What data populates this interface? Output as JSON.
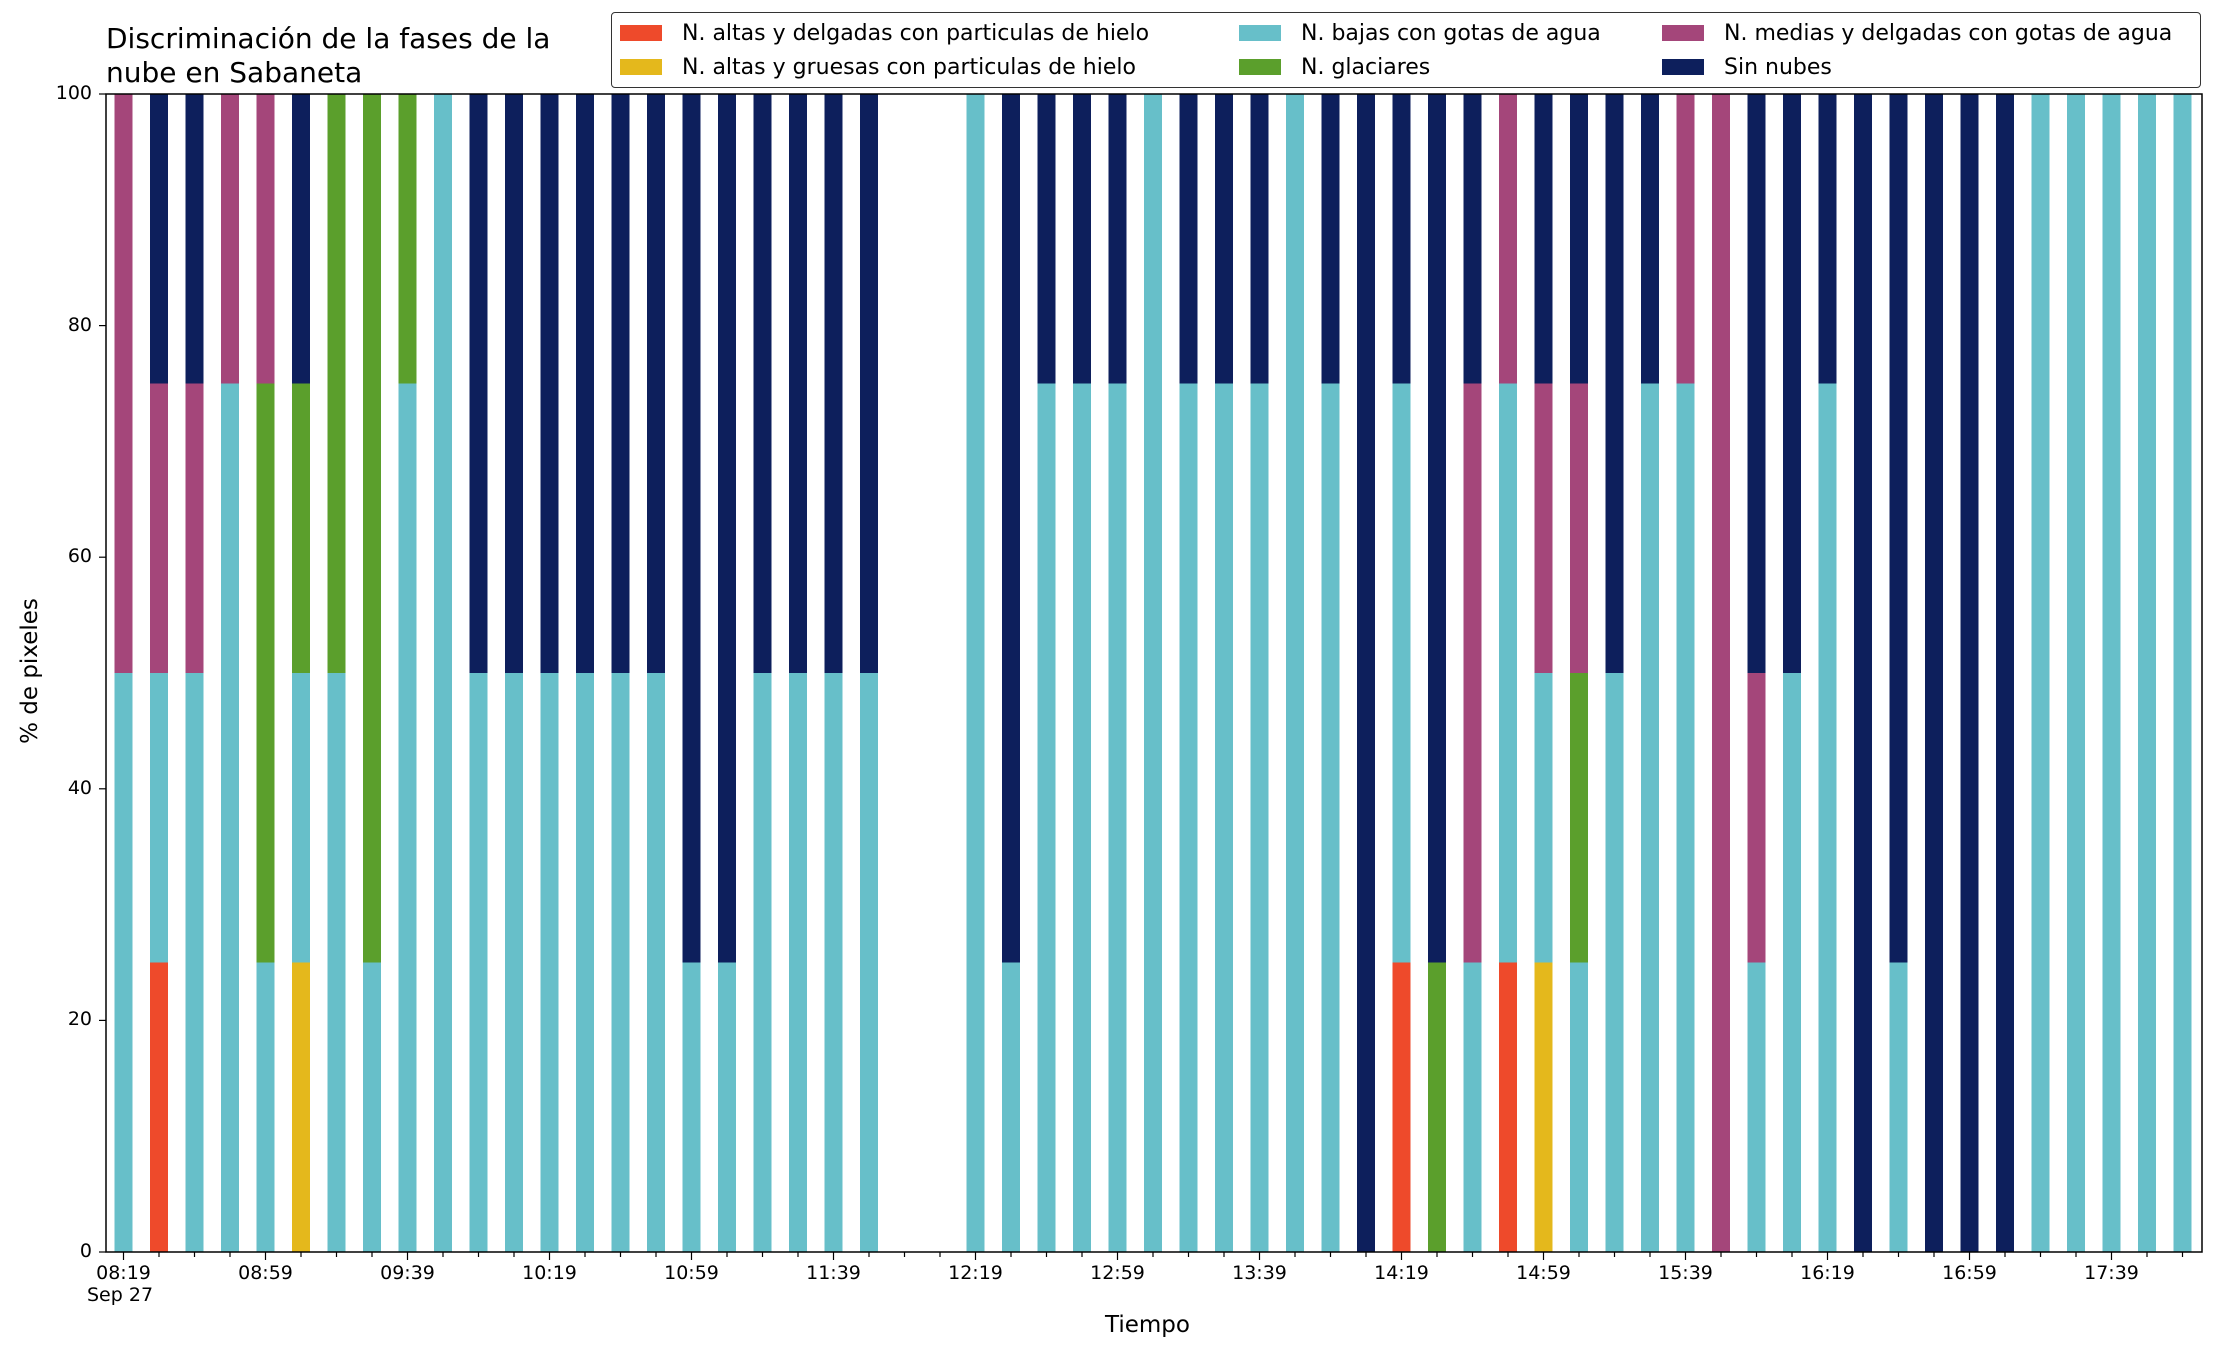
{
  "chart_data": {
    "type": "bar",
    "stacked": true,
    "title": "Discriminación de la fases de la\nnube en Sabaneta",
    "xlabel": "Tiempo",
    "ylabel": "% de pixeles",
    "ylim": [
      0,
      100
    ],
    "yticks": [
      0,
      20,
      40,
      60,
      80,
      100
    ],
    "grid": false,
    "legend_position": "top-right",
    "x_date_label": "Sep 27",
    "xtick_labels": [
      "08:19",
      "08:59",
      "09:39",
      "10:19",
      "10:59",
      "11:39",
      "12:19",
      "12:59",
      "13:39",
      "14:19",
      "14:59",
      "15:39",
      "16:19",
      "16:59",
      "17:39"
    ],
    "categories": [
      "08:19",
      "08:29",
      "08:39",
      "08:49",
      "08:59",
      "09:09",
      "09:19",
      "09:29",
      "09:39",
      "09:49",
      "09:59",
      "10:09",
      "10:19",
      "10:29",
      "10:39",
      "10:49",
      "10:59",
      "11:09",
      "11:19",
      "11:29",
      "11:39",
      "11:49",
      "11:59",
      "12:09",
      "12:19",
      "12:29",
      "12:39",
      "12:49",
      "12:59",
      "13:09",
      "13:19",
      "13:29",
      "13:39",
      "13:49",
      "13:59",
      "14:09",
      "14:19",
      "14:29",
      "14:39",
      "14:49",
      "14:59",
      "15:09",
      "15:19",
      "15:29",
      "15:39",
      "15:49",
      "15:59",
      "16:09",
      "16:19",
      "16:29",
      "16:39",
      "16:49",
      "16:59",
      "17:09",
      "17:19",
      "17:29",
      "17:39",
      "17:49",
      "17:59"
    ],
    "series": [
      {
        "name": "N. altas y delgadas con particulas de hielo",
        "color": "#ee4a2b",
        "values": [
          0,
          25,
          0,
          0,
          0,
          0,
          0,
          0,
          0,
          0,
          0,
          0,
          0,
          0,
          0,
          0,
          0,
          0,
          0,
          0,
          0,
          0,
          null,
          null,
          0,
          0,
          0,
          0,
          0,
          0,
          0,
          0,
          0,
          0,
          0,
          0,
          25,
          0,
          0,
          25,
          0,
          0,
          0,
          0,
          0,
          0,
          0,
          0,
          0,
          0,
          0,
          0,
          0,
          0,
          0,
          0,
          0,
          0,
          0
        ]
      },
      {
        "name": "N. altas y gruesas con particulas de hielo",
        "color": "#e4b81c",
        "values": [
          0,
          0,
          0,
          0,
          0,
          25,
          0,
          0,
          0,
          0,
          0,
          0,
          0,
          0,
          0,
          0,
          0,
          0,
          0,
          0,
          0,
          0,
          null,
          null,
          0,
          0,
          0,
          0,
          0,
          0,
          0,
          0,
          0,
          0,
          0,
          0,
          0,
          0,
          0,
          0,
          25,
          0,
          0,
          0,
          0,
          0,
          0,
          0,
          0,
          0,
          0,
          0,
          0,
          0,
          0,
          0,
          0,
          0,
          0
        ]
      },
      {
        "name": "N. bajas con gotas de agua",
        "color": "#67bfc9",
        "values": [
          50,
          25,
          50,
          75,
          25,
          25,
          50,
          25,
          75,
          100,
          50,
          50,
          50,
          50,
          50,
          50,
          25,
          25,
          50,
          50,
          50,
          50,
          null,
          null,
          100,
          25,
          75,
          75,
          75,
          100,
          75,
          75,
          75,
          100,
          75,
          0,
          50,
          0,
          25,
          50,
          25,
          25,
          50,
          75,
          75,
          0,
          25,
          50,
          75,
          0,
          25,
          0,
          0,
          0,
          100,
          100,
          100,
          100,
          100
        ]
      },
      {
        "name": "N. glaciares",
        "color": "#5b9f2c",
        "values": [
          0,
          0,
          0,
          0,
          50,
          25,
          50,
          75,
          25,
          0,
          0,
          0,
          0,
          0,
          0,
          0,
          0,
          0,
          0,
          0,
          0,
          0,
          null,
          null,
          0,
          0,
          0,
          0,
          0,
          0,
          0,
          0,
          0,
          0,
          0,
          0,
          0,
          25,
          0,
          0,
          0,
          25,
          0,
          0,
          0,
          0,
          0,
          0,
          0,
          0,
          0,
          0,
          0,
          0,
          0,
          0,
          0,
          0,
          0
        ]
      },
      {
        "name": "N. medias y delgadas con gotas de agua",
        "color": "#a4467a",
        "values": [
          50,
          25,
          25,
          25,
          25,
          0,
          0,
          0,
          0,
          0,
          0,
          0,
          0,
          0,
          0,
          0,
          0,
          0,
          0,
          0,
          0,
          0,
          null,
          null,
          0,
          0,
          0,
          0,
          0,
          0,
          0,
          0,
          0,
          0,
          0,
          0,
          0,
          0,
          50,
          25,
          25,
          25,
          0,
          0,
          25,
          100,
          25,
          0,
          0,
          0,
          0,
          0,
          0,
          0,
          0,
          0,
          0,
          0,
          0
        ]
      },
      {
        "name": "Sin nubes",
        "color": "#0d1f5c",
        "values": [
          0,
          25,
          25,
          0,
          0,
          25,
          0,
          0,
          0,
          0,
          50,
          50,
          50,
          50,
          50,
          50,
          75,
          75,
          50,
          50,
          50,
          50,
          null,
          null,
          0,
          75,
          25,
          25,
          25,
          0,
          25,
          25,
          25,
          0,
          25,
          100,
          25,
          75,
          25,
          0,
          25,
          25,
          50,
          25,
          0,
          0,
          50,
          50,
          25,
          100,
          75,
          100,
          100,
          100,
          0,
          0,
          0,
          0,
          0
        ]
      }
    ]
  }
}
